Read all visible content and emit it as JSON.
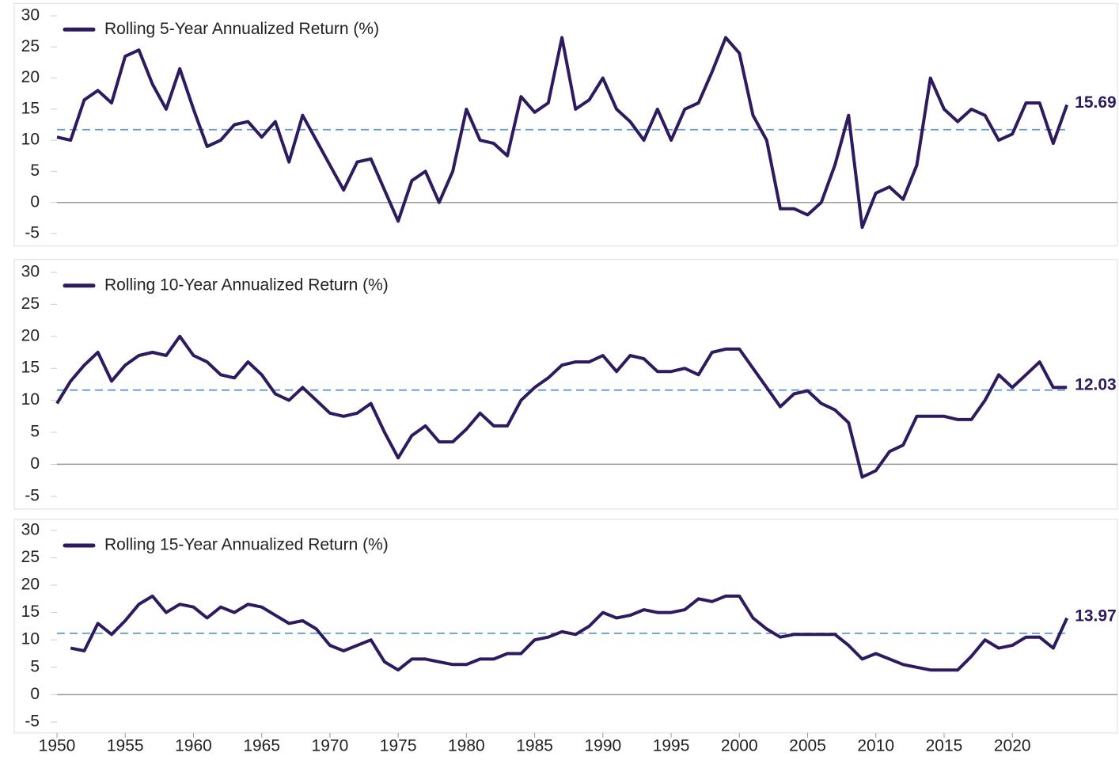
{
  "chart_data": [
    {
      "type": "line",
      "legend": "upper left",
      "xlim": [
        1950,
        2027.7
      ],
      "ylim": [
        -7,
        32
      ],
      "yticks": [
        -5,
        0,
        5,
        10,
        15,
        20,
        25,
        30
      ],
      "reference_line": 11.7,
      "reference_color": "#5b9bd5",
      "x": [
        1950,
        1951,
        1952,
        1953,
        1954,
        1955,
        1956,
        1957,
        1958,
        1959,
        1960,
        1961,
        1962,
        1963,
        1964,
        1965,
        1966,
        1967,
        1968,
        1969,
        1970,
        1971,
        1972,
        1973,
        1974,
        1975,
        1976,
        1977,
        1978,
        1979,
        1980,
        1981,
        1982,
        1983,
        1984,
        1985,
        1986,
        1987,
        1988,
        1989,
        1990,
        1991,
        1992,
        1993,
        1994,
        1995,
        1996,
        1997,
        1998,
        1999,
        2000,
        2001,
        2002,
        2003,
        2004,
        2005,
        2006,
        2007,
        2008,
        2009,
        2010,
        2011,
        2012,
        2013,
        2014,
        2015,
        2016,
        2017,
        2018,
        2019,
        2020,
        2021,
        2022,
        2023,
        2024
      ],
      "series": [
        {
          "name": "Rolling 5-Year Annualized Return (%)",
          "color": "#2e1a5e",
          "values": [
            10.5,
            10,
            16.5,
            18,
            16,
            23.5,
            24.5,
            19,
            15,
            21.5,
            15,
            9,
            10,
            12.5,
            13,
            10.5,
            13,
            6.5,
            14,
            10,
            6,
            2,
            6.5,
            7,
            2,
            -3,
            3.5,
            5,
            0,
            5,
            15,
            10,
            9.5,
            7.5,
            17,
            14.5,
            16,
            26.5,
            15,
            16.5,
            20,
            15,
            13,
            10,
            15,
            10,
            15,
            16,
            21,
            26.5,
            24,
            14,
            10,
            -1,
            -1,
            -2,
            0,
            6,
            14,
            -4,
            1.5,
            2.5,
            0.5,
            6,
            20,
            15,
            13,
            15,
            14,
            10,
            11,
            16,
            16,
            9.5,
            15.69
          ],
          "value_labels": [
            null,
            null,
            null,
            null,
            null,
            null,
            null,
            null,
            null,
            null,
            null,
            null,
            null,
            null,
            null,
            null,
            null,
            null,
            null,
            null,
            null,
            null,
            null,
            null,
            null,
            null,
            null,
            null,
            null,
            null,
            null,
            null,
            null,
            null,
            null,
            null,
            null,
            null,
            null,
            null,
            null,
            null,
            null,
            null,
            null,
            null,
            null,
            null,
            null,
            null,
            null,
            null,
            null,
            null,
            null,
            null,
            null,
            null,
            null,
            null,
            null,
            null,
            null,
            null,
            null,
            null,
            null,
            null,
            null,
            null,
            null,
            null,
            null,
            null,
            "15.69"
          ]
        }
      ]
    },
    {
      "type": "line",
      "legend": "upper left",
      "xlim": [
        1950,
        2027.7
      ],
      "ylim": [
        -7,
        32
      ],
      "yticks": [
        -5,
        0,
        5,
        10,
        15,
        20,
        25,
        30
      ],
      "reference_line": 11.6,
      "reference_color": "#5b9bd5",
      "x": [
        1950,
        1951,
        1952,
        1953,
        1954,
        1955,
        1956,
        1957,
        1958,
        1959,
        1960,
        1961,
        1962,
        1963,
        1964,
        1965,
        1966,
        1967,
        1968,
        1969,
        1970,
        1971,
        1972,
        1973,
        1974,
        1975,
        1976,
        1977,
        1978,
        1979,
        1980,
        1981,
        1982,
        1983,
        1984,
        1985,
        1986,
        1987,
        1988,
        1989,
        1990,
        1991,
        1992,
        1993,
        1994,
        1995,
        1996,
        1997,
        1998,
        1999,
        2000,
        2001,
        2002,
        2003,
        2004,
        2005,
        2006,
        2007,
        2008,
        2009,
        2010,
        2011,
        2012,
        2013,
        2014,
        2015,
        2016,
        2017,
        2018,
        2019,
        2020,
        2021,
        2022,
        2023,
        2024
      ],
      "series": [
        {
          "name": "Rolling 10-Year Annualized Return (%)",
          "color": "#2e1a5e",
          "values": [
            9.5,
            13,
            15.5,
            17.5,
            13,
            15.5,
            17,
            17.5,
            17,
            20,
            17,
            16,
            14,
            13.5,
            16,
            14,
            11,
            10,
            12,
            10,
            8,
            7.5,
            8,
            9.5,
            5,
            1,
            4.5,
            6,
            3.5,
            3.5,
            5.5,
            8,
            6,
            6,
            10,
            12,
            13.5,
            15.5,
            16,
            16,
            17,
            14.5,
            17,
            16.5,
            14.5,
            14.5,
            15,
            14,
            17.5,
            18,
            18,
            15,
            12,
            9,
            11,
            11.5,
            9.5,
            8.5,
            6.5,
            -2,
            -1,
            2,
            3,
            7.5,
            7.5,
            7.5,
            7,
            7,
            10,
            14,
            12,
            14,
            16,
            12,
            12.03
          ],
          "value_labels": [
            null,
            null,
            null,
            null,
            null,
            null,
            null,
            null,
            null,
            null,
            null,
            null,
            null,
            null,
            null,
            null,
            null,
            null,
            null,
            null,
            null,
            null,
            null,
            null,
            null,
            null,
            null,
            null,
            null,
            null,
            null,
            null,
            null,
            null,
            null,
            null,
            null,
            null,
            null,
            null,
            null,
            null,
            null,
            null,
            null,
            null,
            null,
            null,
            null,
            null,
            null,
            null,
            null,
            null,
            null,
            null,
            null,
            null,
            null,
            null,
            null,
            null,
            null,
            null,
            null,
            null,
            null,
            null,
            null,
            null,
            null,
            null,
            null,
            null,
            "12.03"
          ]
        }
      ]
    },
    {
      "type": "line",
      "legend": "upper left",
      "xlim": [
        1950,
        2027.7
      ],
      "ylim": [
        -7,
        32
      ],
      "yticks": [
        -5,
        0,
        5,
        10,
        15,
        20,
        25,
        30
      ],
      "xticks": [
        1950,
        1955,
        1960,
        1965,
        1970,
        1975,
        1980,
        1985,
        1990,
        1995,
        2000,
        2005,
        2010,
        2015,
        2020
      ],
      "reference_line": 11.2,
      "reference_color": "#5b9bd5",
      "x": [
        1950,
        1951,
        1952,
        1953,
        1954,
        1955,
        1956,
        1957,
        1958,
        1959,
        1960,
        1961,
        1962,
        1963,
        1964,
        1965,
        1966,
        1967,
        1968,
        1969,
        1970,
        1971,
        1972,
        1973,
        1974,
        1975,
        1976,
        1977,
        1978,
        1979,
        1980,
        1981,
        1982,
        1983,
        1984,
        1985,
        1986,
        1987,
        1988,
        1989,
        1990,
        1991,
        1992,
        1993,
        1994,
        1995,
        1996,
        1997,
        1998,
        1999,
        2000,
        2001,
        2002,
        2003,
        2004,
        2005,
        2006,
        2007,
        2008,
        2009,
        2010,
        2011,
        2012,
        2013,
        2014,
        2015,
        2016,
        2017,
        2018,
        2019,
        2020,
        2021,
        2022,
        2023,
        2024
      ],
      "series": [
        {
          "name": "Rolling 15-Year Annualized Return (%)",
          "color": "#2e1a5e",
          "values": [
            null,
            8.5,
            8,
            13,
            11,
            13.5,
            16.5,
            18,
            15,
            16.5,
            16,
            14,
            16,
            15,
            16.5,
            16,
            14.5,
            13,
            13.5,
            12,
            9,
            8,
            9,
            10,
            6,
            4.5,
            6.5,
            6.5,
            6,
            5.5,
            5.5,
            6.5,
            6.5,
            7.5,
            7.5,
            10,
            10.5,
            11.5,
            11,
            12.5,
            15,
            14,
            14.5,
            15.5,
            15,
            15,
            15.5,
            17.5,
            17,
            18,
            18,
            14,
            12,
            10.5,
            11,
            11,
            11,
            11,
            9,
            6.5,
            7.5,
            6.5,
            5.5,
            5,
            4.5,
            4.5,
            4.5,
            7,
            10,
            8.5,
            9,
            10.5,
            10.5,
            8.5,
            13.97
          ],
          "value_labels": [
            null,
            null,
            null,
            null,
            null,
            null,
            null,
            null,
            null,
            null,
            null,
            null,
            null,
            null,
            null,
            null,
            null,
            null,
            null,
            null,
            null,
            null,
            null,
            null,
            null,
            null,
            null,
            null,
            null,
            null,
            null,
            null,
            null,
            null,
            null,
            null,
            null,
            null,
            null,
            null,
            null,
            null,
            null,
            null,
            null,
            null,
            null,
            null,
            null,
            null,
            null,
            null,
            null,
            null,
            null,
            null,
            null,
            null,
            null,
            null,
            null,
            null,
            null,
            null,
            null,
            null,
            null,
            null,
            null,
            null,
            null,
            null,
            null,
            null,
            "13.97"
          ]
        }
      ]
    }
  ]
}
